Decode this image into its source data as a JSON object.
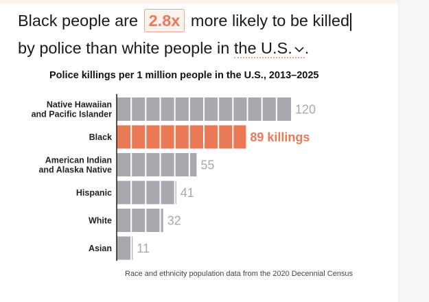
{
  "headline": {
    "part1": "Black people are",
    "ratio": "2.8x",
    "part2": "more likely to be killed",
    "part3": "by police than white people in",
    "selector": "the U.S.",
    "end": "."
  },
  "chart_data": {
    "type": "bar",
    "orientation": "horizontal",
    "title": "Police killings per 1 million people in the U.S., 2013–2025",
    "categories": [
      [
        "Native Hawaiian",
        "and Pacific Islander"
      ],
      [
        "Black"
      ],
      [
        "American Indian",
        "and Alaska Native"
      ],
      [
        "Hispanic"
      ],
      [
        "White"
      ],
      [
        "Asian"
      ]
    ],
    "values": [
      120,
      89,
      55,
      41,
      32,
      11
    ],
    "value_labels": [
      "120",
      "89 killings",
      "55",
      "41",
      "32",
      "11"
    ],
    "highlight_index": 1,
    "xlim": [
      0,
      120
    ],
    "segment_size": 10,
    "colors": {
      "bar": "#a7a9ae",
      "highlight": "#ea7a57"
    },
    "source": "Race and ethnicity population data from the 2020 Decennial Census"
  }
}
